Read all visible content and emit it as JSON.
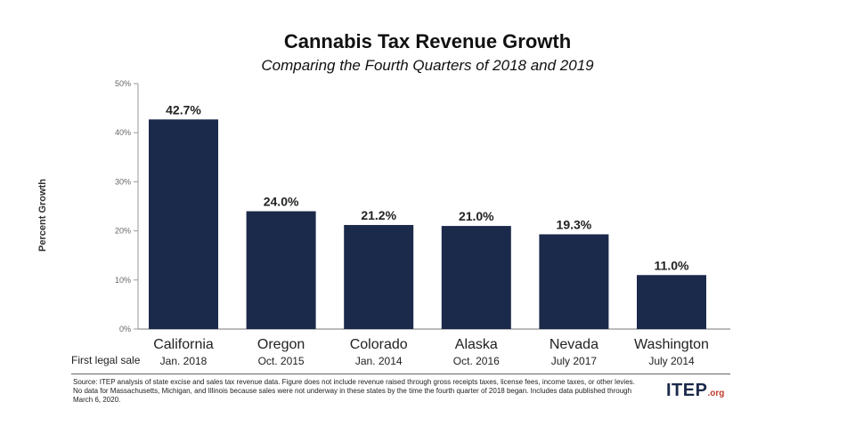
{
  "chart_data": {
    "type": "bar",
    "title": "Cannabis Tax Revenue Growth",
    "subtitle": "Comparing the Fourth Quarters of 2018 and 2019",
    "ylabel": "Percent Growth",
    "xlabel": "",
    "ylim": [
      0,
      50
    ],
    "yticks": [
      "0%",
      "10%",
      "20%",
      "30%",
      "40%",
      "50%"
    ],
    "ytick_values": [
      0,
      10,
      20,
      30,
      40,
      50
    ],
    "categories": [
      "California",
      "Oregon",
      "Colorado",
      "Alaska",
      "Nevada",
      "Washington"
    ],
    "sublabels": [
      "Jan. 2018",
      "Oct. 2015",
      "Jan. 2014",
      "Oct. 2016",
      "July 2017",
      "July 2014"
    ],
    "values": [
      42.7,
      24.0,
      21.2,
      21.0,
      19.3,
      11.0
    ],
    "data_labels": [
      "42.7%",
      "24.0%",
      "21.2%",
      "21.0%",
      "19.3%",
      "11.0%"
    ],
    "bar_color": "#1b2a4a",
    "grid": false,
    "legend": "none"
  },
  "first_sale_label": "First legal sale",
  "source_text": "Source: ITEP analysis of state excise and sales tax revenue data. Figure does not include revenue raised through gross receipts taxes, license fees, income taxes, or other levies. No data for Massachusetts, Michigan, and Illinois because sales were not underway in these states by the time the fourth quarter of 2018 began. Includes data published through March 6, 2020.",
  "logo": {
    "main": "ITEP",
    "suffix": ".org"
  }
}
